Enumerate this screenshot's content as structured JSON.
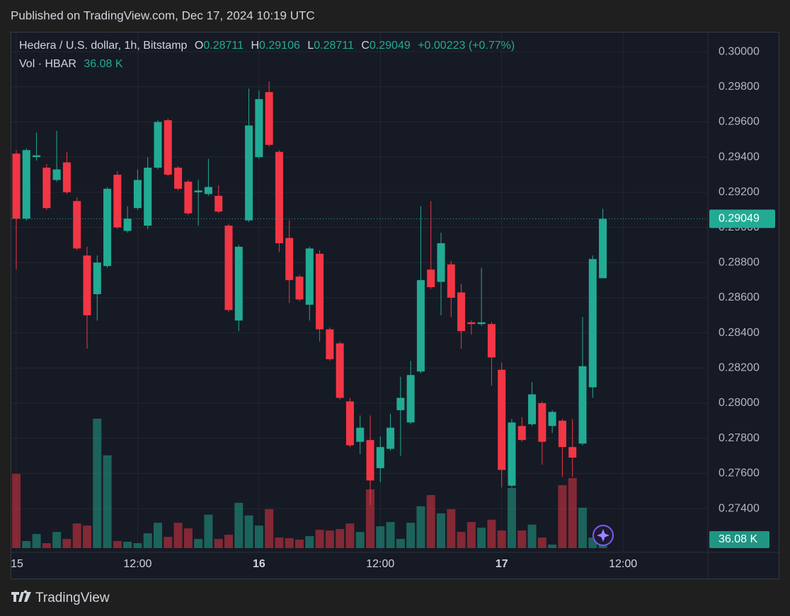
{
  "chart_data": {
    "type": "candlestick",
    "title": "Published on TradingView.com, Dec 17, 2024 10:19 UTC",
    "symbol": "Hedera / U.S. dollar, 1h, Bitstamp",
    "ohlc_labels": [
      "O",
      "H",
      "L",
      "C"
    ],
    "change_label": "+0.00223 (+0.77%)",
    "footer": "TradingView",
    "up_color": "#22ab94",
    "down_color": "#f23645",
    "grid": true,
    "open": [
      0.2942,
      0.2905,
      0.294,
      0.2934,
      0.2927,
      0.2937,
      0.2915,
      0.2884,
      0.2862,
      0.2878,
      0.293,
      0.2898,
      0.2911,
      0.2901,
      0.2934,
      0.2961,
      0.2934,
      0.2926,
      0.292,
      0.2919,
      0.2918,
      0.2901,
      0.2847,
      0.2904,
      0.294,
      0.2977,
      0.2943,
      0.2894,
      0.2872,
      0.2856,
      0.2885,
      0.2842,
      0.2834,
      0.2801,
      0.2778,
      0.2779,
      0.2763,
      0.2774,
      0.2796,
      0.2789,
      0.2818,
      0.2876,
      0.2869,
      0.2879,
      0.2863,
      0.2846,
      0.2845,
      0.2845,
      0.2819,
      0.2753,
      0.2787,
      0.2788,
      0.28,
      0.2787,
      0.279,
      0.2775,
      0.2777,
      0.2809,
      0.28711
    ],
    "high": [
      0.2944,
      0.2945,
      0.2954,
      0.2936,
      0.2955,
      0.2943,
      0.2917,
      0.2889,
      0.2884,
      0.2923,
      0.2932,
      0.2912,
      0.2933,
      0.294,
      0.2961,
      0.2962,
      0.2935,
      0.2927,
      0.2927,
      0.2939,
      0.2924,
      0.2902,
      0.289,
      0.2979,
      0.2978,
      0.2983,
      0.2944,
      0.2904,
      0.2873,
      0.2889,
      0.2887,
      0.2843,
      0.2835,
      0.2803,
      0.2793,
      0.2793,
      0.2781,
      0.2794,
      0.2815,
      0.2824,
      0.2912,
      0.2915,
      0.2897,
      0.2881,
      0.2868,
      0.2847,
      0.2877,
      0.2846,
      0.2823,
      0.2791,
      0.2792,
      0.2812,
      0.2801,
      0.2796,
      0.2791,
      0.2791,
      0.2849,
      0.2884,
      0.29106
    ],
    "low": [
      0.2876,
      0.2904,
      0.2938,
      0.291,
      0.2926,
      0.2919,
      0.2887,
      0.2831,
      0.2847,
      0.2877,
      0.2899,
      0.2897,
      0.291,
      0.2899,
      0.2933,
      0.2929,
      0.2921,
      0.2907,
      0.2901,
      0.2918,
      0.2908,
      0.2852,
      0.2841,
      0.2903,
      0.2939,
      0.2946,
      0.2886,
      0.2857,
      0.2858,
      0.2847,
      0.2835,
      0.2824,
      0.2802,
      0.2775,
      0.2771,
      0.2742,
      0.2755,
      0.2773,
      0.277,
      0.2788,
      0.2817,
      0.2865,
      0.285,
      0.2849,
      0.2831,
      0.2839,
      0.2844,
      0.281,
      0.2752,
      0.2752,
      0.2778,
      0.2787,
      0.2765,
      0.2783,
      0.2758,
      0.2758,
      0.2776,
      0.2803,
      0.28711
    ],
    "close": [
      0.2905,
      0.2944,
      0.2941,
      0.2911,
      0.2933,
      0.292,
      0.2888,
      0.285,
      0.288,
      0.2922,
      0.29,
      0.2905,
      0.2927,
      0.2934,
      0.296,
      0.293,
      0.2922,
      0.2908,
      0.2921,
      0.2923,
      0.2909,
      0.2853,
      0.2889,
      0.2958,
      0.2973,
      0.2947,
      0.2891,
      0.287,
      0.2859,
      0.2888,
      0.2842,
      0.2825,
      0.2803,
      0.2776,
      0.2786,
      0.2756,
      0.2775,
      0.2786,
      0.2803,
      0.2816,
      0.287,
      0.2866,
      0.2891,
      0.286,
      0.2841,
      0.2845,
      0.2846,
      0.2826,
      0.2762,
      0.2789,
      0.2779,
      0.2805,
      0.2778,
      0.2795,
      0.2775,
      0.2769,
      0.2821,
      0.2882,
      0.29049
    ],
    "volume": {
      "name": "Vol · HBAR",
      "last_label": "36.08 K",
      "values": [
        316,
        30,
        60,
        21,
        69,
        39,
        105,
        96,
        551,
        395,
        30,
        27,
        21,
        63,
        108,
        48,
        108,
        84,
        39,
        142,
        39,
        57,
        193,
        139,
        96,
        166,
        45,
        42,
        36,
        51,
        78,
        75,
        81,
        105,
        69,
        250,
        93,
        111,
        39,
        108,
        178,
        226,
        148,
        166,
        69,
        111,
        87,
        121,
        75,
        256,
        75,
        100,
        45,
        15,
        268,
        298,
        172,
        45,
        36.08
      ]
    },
    "xlim": [
      -0.49,
      68.39
    ],
    "xticks": [
      {
        "value": 0,
        "label": "15"
      },
      {
        "value": 12,
        "label": "12:00"
      },
      {
        "value": 24,
        "label": "16"
      },
      {
        "value": 36,
        "label": "12:00"
      },
      {
        "value": 48,
        "label": "17"
      },
      {
        "value": 60,
        "label": "12:00"
      }
    ],
    "ylim": [
      0.27175,
      0.30113
    ],
    "yticks": [
      {
        "value": 0.3,
        "label": "0.30000"
      },
      {
        "value": 0.298,
        "label": "0.29800"
      },
      {
        "value": 0.296,
        "label": "0.29600"
      },
      {
        "value": 0.294,
        "label": "0.29400"
      },
      {
        "value": 0.292,
        "label": "0.29200"
      },
      {
        "value": 0.29,
        "label": "0.29000"
      },
      {
        "value": 0.288,
        "label": "0.28800"
      },
      {
        "value": 0.286,
        "label": "0.28600"
      },
      {
        "value": 0.284,
        "label": "0.28400"
      },
      {
        "value": 0.282,
        "label": "0.28200"
      },
      {
        "value": 0.28,
        "label": "0.28000"
      },
      {
        "value": 0.278,
        "label": "0.27800"
      },
      {
        "value": 0.276,
        "label": "0.27600"
      },
      {
        "value": 0.274,
        "label": "0.27400"
      }
    ]
  }
}
